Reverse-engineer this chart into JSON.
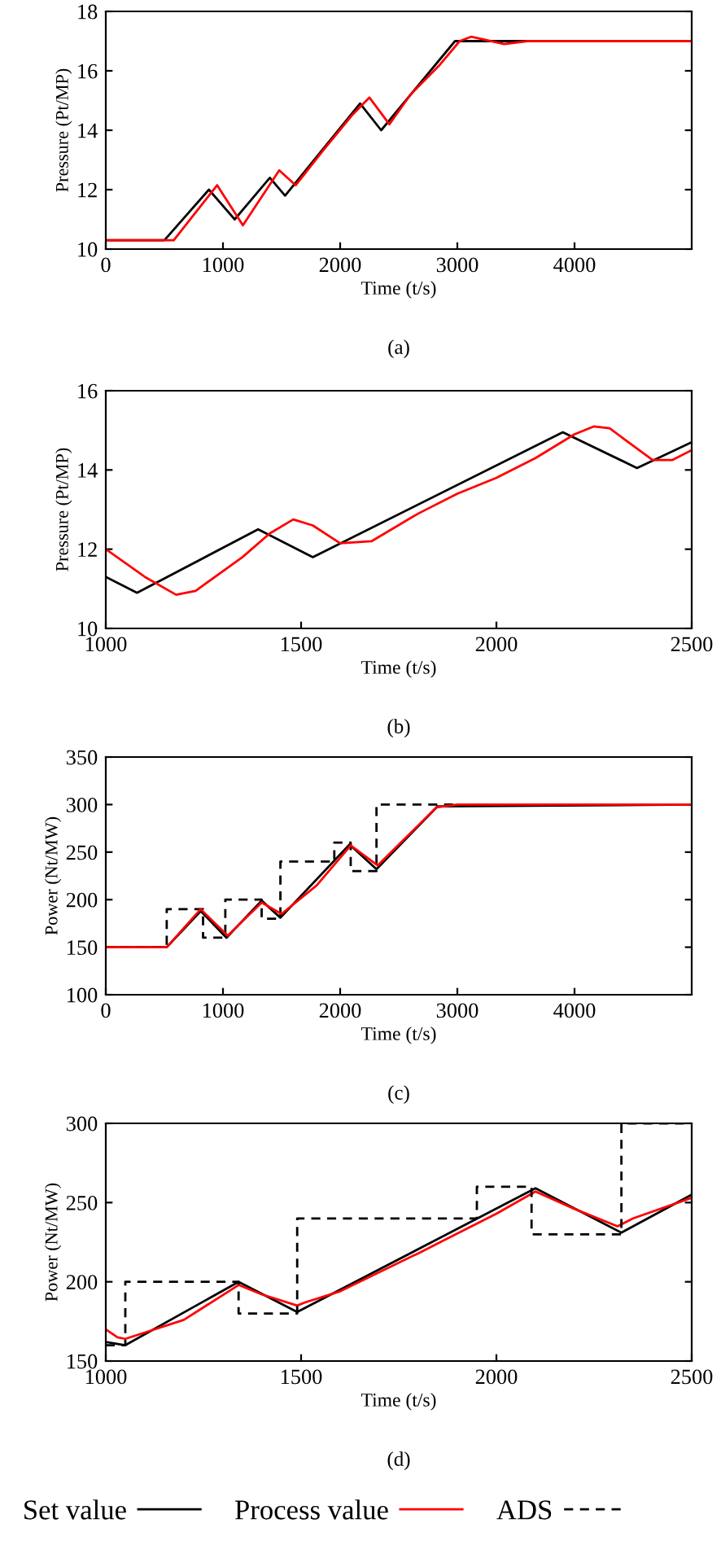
{
  "chart_data": [
    {
      "type": "line",
      "xlabel": "Time (t/s)",
      "ylabel": "Pressure (Pt/MP)",
      "annotations": [
        "(a)"
      ],
      "xlim": [
        0,
        5000
      ],
      "xticks": [
        0,
        1000,
        2000,
        3000,
        4000
      ],
      "ylim": [
        10,
        18
      ],
      "yticks": [
        10,
        12,
        14,
        16,
        18
      ],
      "grid": false,
      "series": [
        {
          "color": "#000000",
          "line_style": "solid",
          "x": [
            0,
            500,
            880,
            1100,
            1400,
            1530,
            2170,
            2350,
            2980,
            5000
          ],
          "values": [
            10.3,
            10.3,
            12.0,
            11.0,
            12.4,
            11.8,
            14.9,
            14.0,
            17.0,
            17.0
          ]
        },
        {
          "color": "#ff0000",
          "line_style": "solid",
          "x": [
            0,
            580,
            950,
            1170,
            1480,
            1620,
            1850,
            2100,
            2250,
            2420,
            2600,
            2850,
            3020,
            3120,
            3400,
            3600,
            5000
          ],
          "values": [
            10.3,
            10.3,
            12.15,
            10.8,
            12.65,
            12.15,
            13.3,
            14.5,
            15.1,
            14.2,
            15.2,
            16.2,
            17.0,
            17.15,
            16.9,
            17.0,
            17.0
          ]
        }
      ]
    },
    {
      "type": "line",
      "xlabel": "Time (t/s)",
      "ylabel": "Pressure (Pt/MP)",
      "annotations": [
        "(b)"
      ],
      "xlim": [
        1000,
        2500
      ],
      "xticks": [
        1000,
        1500,
        2000,
        2500
      ],
      "ylim": [
        10,
        16
      ],
      "yticks": [
        10,
        12,
        14,
        16
      ],
      "grid": false,
      "series": [
        {
          "color": "#000000",
          "line_style": "solid",
          "x": [
            1000,
            1080,
            1390,
            1530,
            2170,
            2360,
            2500
          ],
          "values": [
            11.3,
            10.9,
            12.5,
            11.8,
            14.95,
            14.05,
            14.7
          ]
        },
        {
          "color": "#ff0000",
          "line_style": "solid",
          "x": [
            1000,
            1100,
            1180,
            1230,
            1350,
            1420,
            1480,
            1530,
            1600,
            1680,
            1800,
            1900,
            2000,
            2100,
            2200,
            2250,
            2290,
            2400,
            2450,
            2500
          ],
          "values": [
            12.0,
            11.3,
            10.85,
            10.95,
            11.8,
            12.4,
            12.75,
            12.6,
            12.15,
            12.2,
            12.9,
            13.4,
            13.8,
            14.3,
            14.9,
            15.1,
            15.05,
            14.25,
            14.25,
            14.5
          ]
        }
      ]
    },
    {
      "type": "line",
      "xlabel": "Time (t/s)",
      "ylabel": "Power (Nt/MW)",
      "annotations": [
        "(c)"
      ],
      "xlim": [
        0,
        5000
      ],
      "xticks": [
        0,
        1000,
        2000,
        3000,
        4000
      ],
      "ylim": [
        100,
        350
      ],
      "yticks": [
        100,
        150,
        200,
        250,
        300,
        350
      ],
      "grid": false,
      "series": [
        {
          "type": "step",
          "color": "#000000",
          "line_style": "dashed",
          "x": [
            0,
            520,
            830,
            1020,
            1330,
            1490,
            1950,
            2090,
            2310,
            3150
          ],
          "values": [
            150,
            190,
            160,
            200,
            180,
            240,
            260,
            230,
            300,
            300
          ]
        },
        {
          "color": "#000000",
          "line_style": "solid",
          "x": [
            0,
            520,
            810,
            1030,
            1330,
            1490,
            2080,
            2310,
            2830,
            5000
          ],
          "values": [
            150,
            150,
            188,
            160,
            199,
            181,
            258,
            232,
            298,
            300
          ]
        },
        {
          "color": "#ff0000",
          "line_style": "solid",
          "x": [
            0,
            520,
            810,
            1040,
            1330,
            1500,
            1800,
            2090,
            2320,
            2600,
            2820,
            3000,
            5000
          ],
          "values": [
            150,
            150,
            190,
            162,
            197,
            185,
            215,
            257,
            236,
            270,
            297,
            300,
            300
          ]
        }
      ]
    },
    {
      "type": "line",
      "xlabel": "Time (t/s)",
      "ylabel": "Power (Nt/MW)",
      "annotations": [
        "(d)"
      ],
      "xlim": [
        1000,
        2500
      ],
      "xticks": [
        1000,
        1500,
        2000,
        2500
      ],
      "ylim": [
        150,
        300
      ],
      "yticks": [
        150,
        200,
        250,
        300
      ],
      "grid": false,
      "legend": "bottom",
      "series": [
        {
          "name": "Set value",
          "color": "#000000",
          "line_style": "solid",
          "x": [
            1000,
            1050,
            1340,
            1490,
            2100,
            2320,
            2500
          ],
          "values": [
            162,
            160,
            200,
            181,
            259,
            231,
            255
          ]
        },
        {
          "name": "Process value",
          "color": "#ff0000",
          "line_style": "solid",
          "x": [
            1000,
            1030,
            1050,
            1100,
            1200,
            1340,
            1400,
            1490,
            1510,
            1600,
            1800,
            2000,
            2100,
            2200,
            2310,
            2350,
            2500
          ],
          "values": [
            170,
            165,
            164,
            168,
            176,
            198,
            192,
            185,
            187,
            194,
            218,
            243,
            257,
            246,
            235,
            240,
            253
          ]
        },
        {
          "name": "ADS",
          "type": "step",
          "color": "#000000",
          "line_style": "dashed",
          "x": [
            1000,
            1050,
            1340,
            1490,
            1950,
            2090,
            2320,
            2500
          ],
          "values": [
            160,
            200,
            180,
            240,
            260,
            230,
            300,
            300
          ]
        }
      ]
    }
  ]
}
